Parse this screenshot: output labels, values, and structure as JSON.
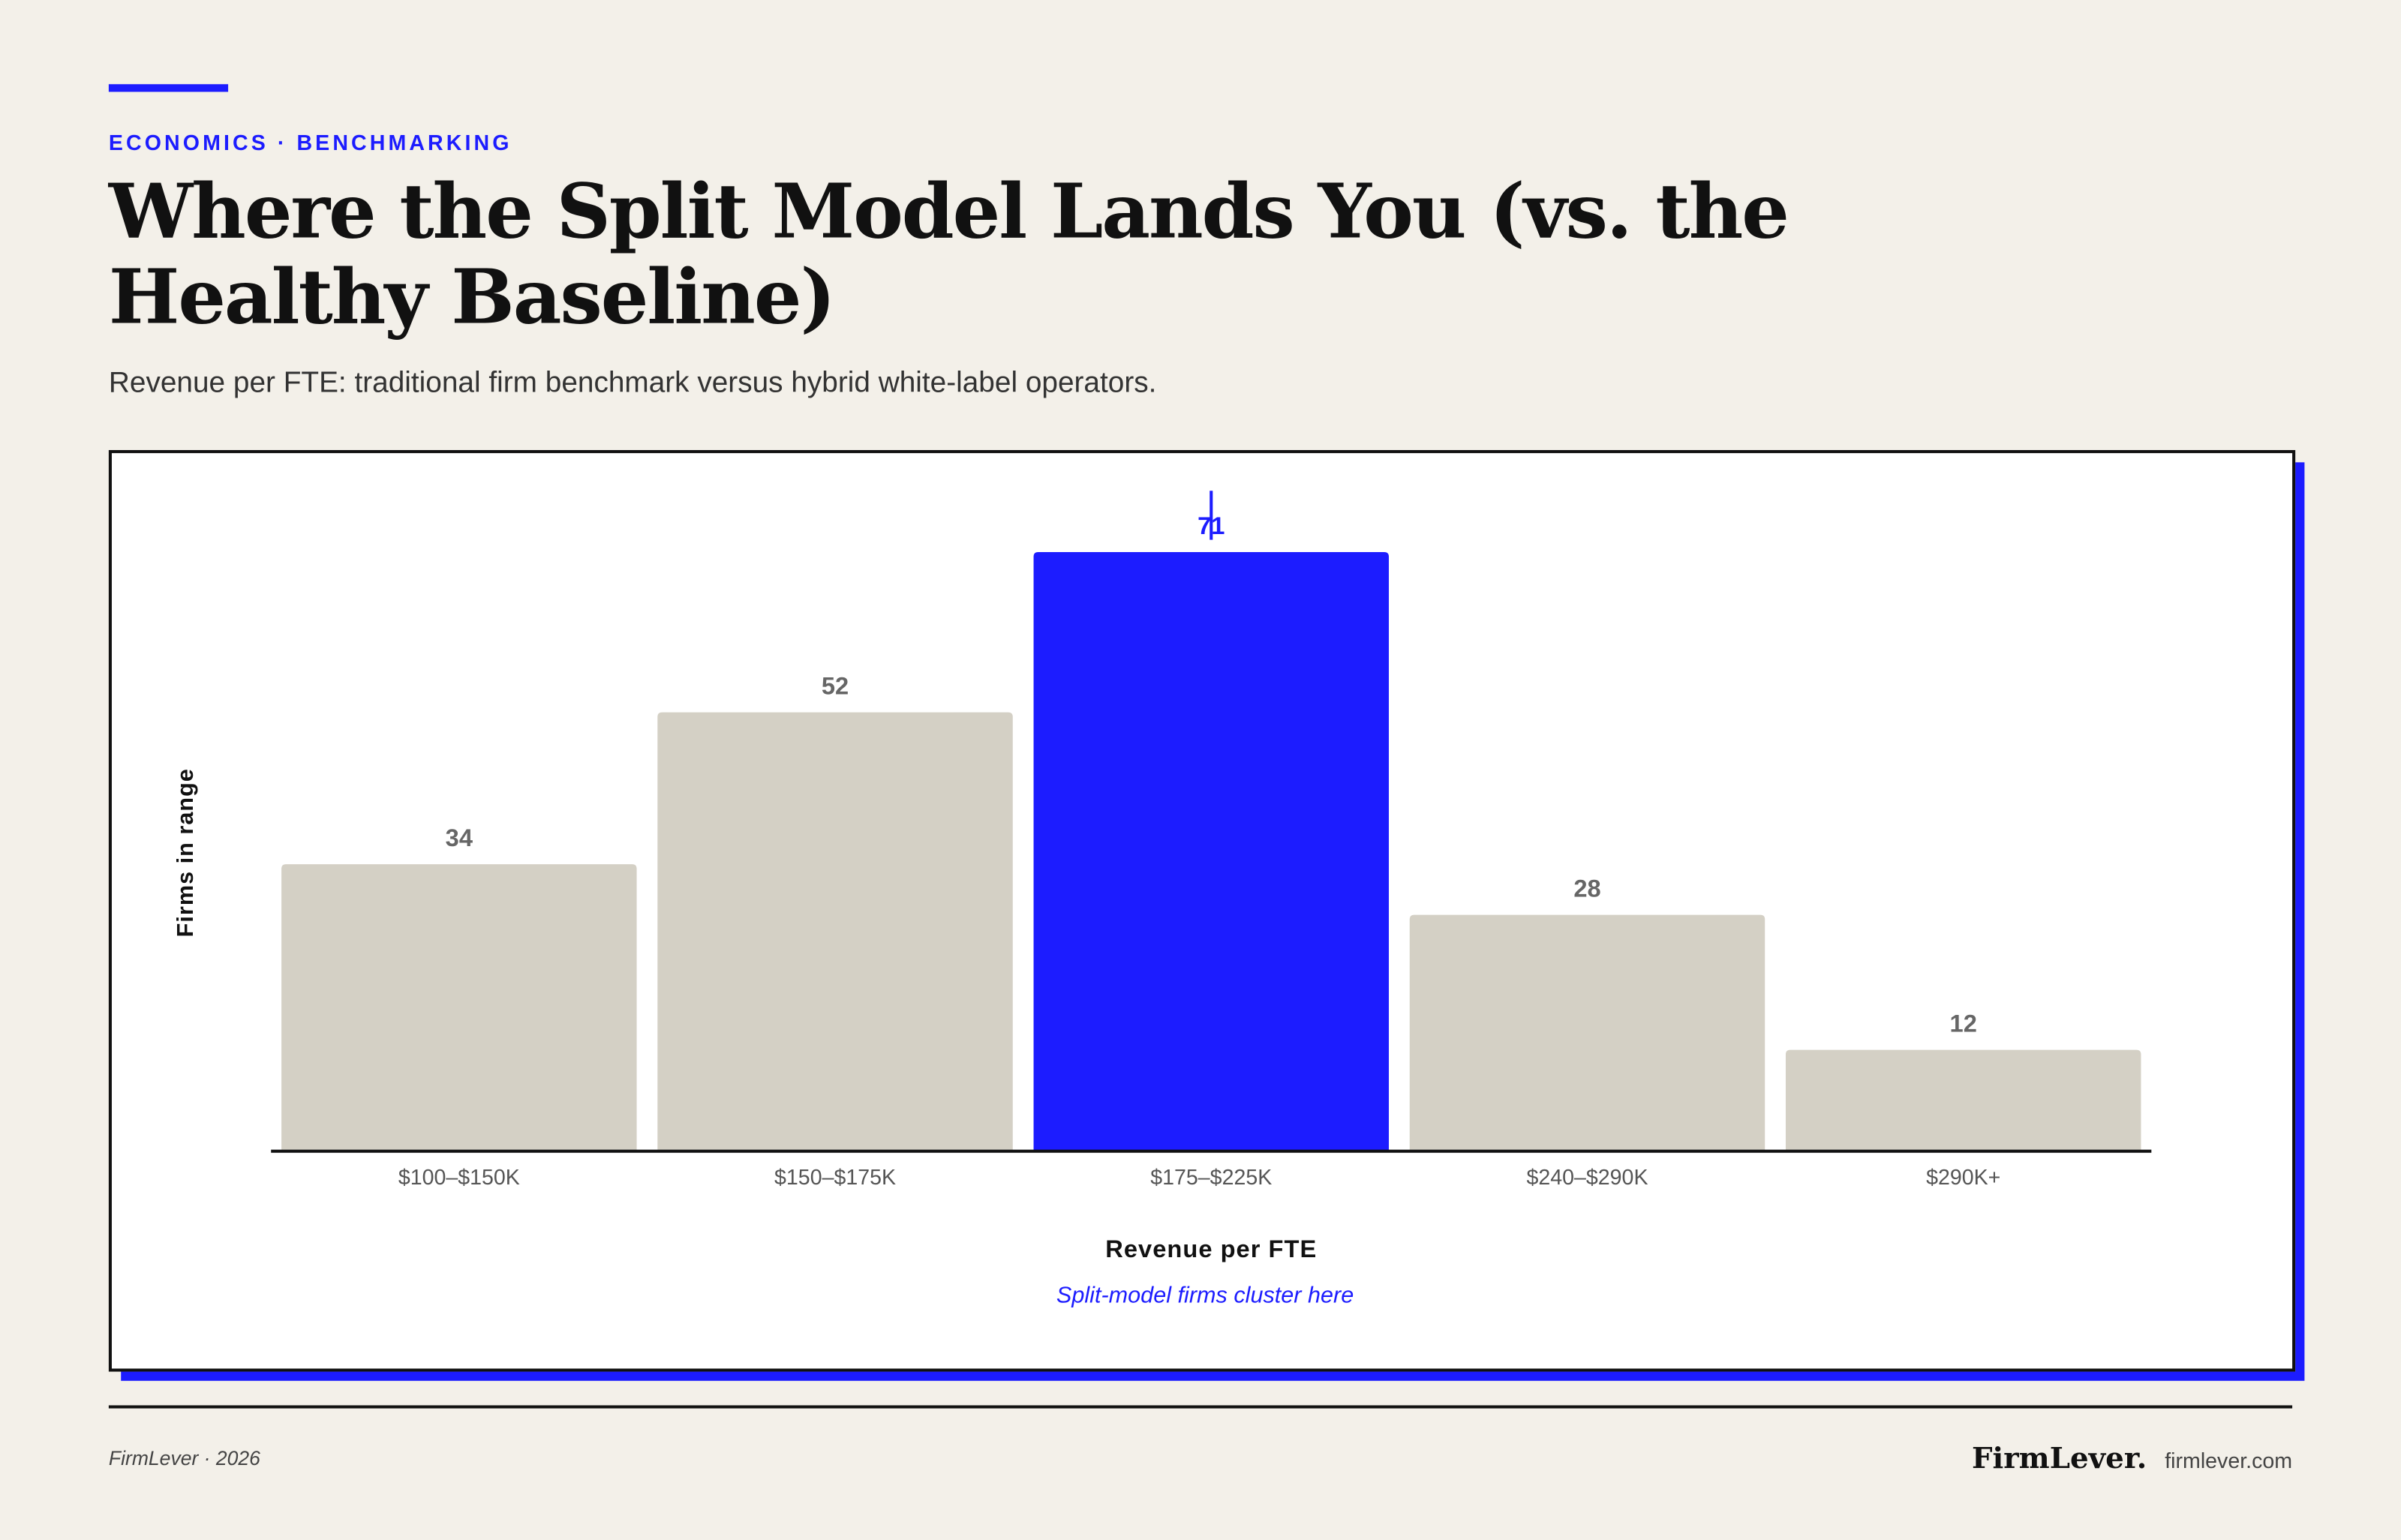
{
  "header": {
    "kicker": "ECONOMICS · BENCHMARKING",
    "title": "Where the Split Model Lands You (vs. the Healthy Baseline)",
    "subtitle": "Revenue per FTE: traditional firm benchmark versus hybrid white-label operators."
  },
  "chart_data": {
    "type": "bar",
    "categories": [
      "$100–$150K",
      "$150–$175K",
      "$175–$225K",
      "$240–$290K",
      "$290K+"
    ],
    "values": [
      34,
      52,
      71,
      28,
      12
    ],
    "colors": [
      "#d4d0c5",
      "#d4d0c5",
      "#1c1cff",
      "#d4d0c5",
      "#d4d0c5"
    ],
    "ylim": [
      0,
      80
    ],
    "grid": false,
    "y_label": "Firms in range",
    "x_label": "Revenue per FTE",
    "annotation": {
      "text": "Split-model firms cluster here",
      "category": "$175–$225K",
      "color": "#1c1cff"
    }
  },
  "footer": {
    "credit": "FirmLever · 2026",
    "brand": "FirmLever.",
    "site": "firmlever.com"
  }
}
